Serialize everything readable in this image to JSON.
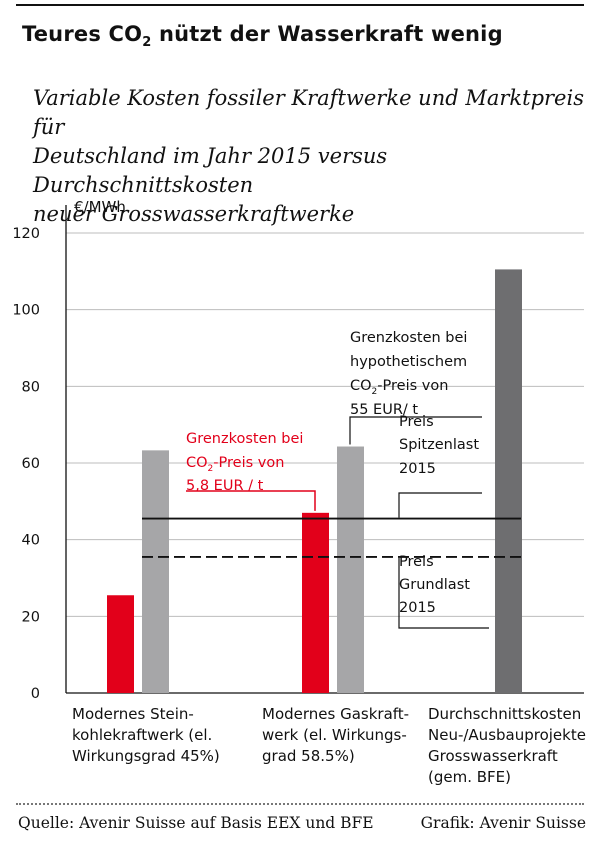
{
  "title": {
    "main": "Teures CO",
    "sub": "2",
    "rest": " nützt der Wasserkraft wenig"
  },
  "subtitle": [
    "Variable Kosten fossiler Kraftwerke und Marktpreis für",
    "Deutschland im Jahr 2015 versus Durchschnittskosten",
    "neuer Grosswasserkraftwerke"
  ],
  "chart_data": {
    "type": "bar",
    "unit_label": "€/MWh",
    "ylim": [
      0,
      120
    ],
    "yticks": [
      "0",
      "20",
      "40",
      "60",
      "80",
      "100",
      "120"
    ],
    "grid": true,
    "categories": [
      {
        "lines": [
          "Modernes Stein-",
          "kohlekraftwerk (el.",
          "Wirkungsgrad 45%)"
        ]
      },
      {
        "lines": [
          "Modernes Gaskraft-",
          "werk (el. Wirkungs-",
          "grad 58.5%)"
        ]
      },
      {
        "lines": [
          "Durchschnittskosten",
          "Neu-/Ausbauprojekte",
          "Grosswasserkraft",
          "(gem. BFE)"
        ]
      }
    ],
    "bars": [
      {
        "category": 0,
        "series": "co2_5_8",
        "value": 25.5,
        "color": "#e2001a"
      },
      {
        "category": 0,
        "series": "co2_55",
        "value": 63.3,
        "color": "#a6a6a8"
      },
      {
        "category": 1,
        "series": "co2_5_8",
        "value": 47,
        "color": "#e2001a"
      },
      {
        "category": 1,
        "series": "co2_55",
        "value": 64.3,
        "color": "#a6a6a8"
      },
      {
        "category": 2,
        "series": "hydro",
        "value": 110.5,
        "color": "#6e6e70"
      }
    ],
    "reference_lines": [
      {
        "value": 45.5,
        "style": "solid"
      },
      {
        "value": 35.5,
        "style": "dashed"
      }
    ],
    "annotations": {
      "red": {
        "lines": [
          "Grenzkosten bei",
          "CO2-Preis von",
          "5,8 EUR / t"
        ],
        "color": "#e2001a"
      },
      "gray": {
        "lines": [
          "Grenzkosten bei",
          "hypothetischem",
          "CO2-Preis von",
          "55 EUR/ t"
        ]
      },
      "peak": {
        "lines": [
          "Preis",
          "Spitzenlast",
          "2015"
        ]
      },
      "base": {
        "lines": [
          "Preis",
          "Grundlast",
          "2015"
        ]
      }
    }
  },
  "footer": {
    "source": "Quelle:  Avenir Suisse auf Basis EEX und BFE",
    "credit": "Grafik: Avenir Suisse"
  }
}
